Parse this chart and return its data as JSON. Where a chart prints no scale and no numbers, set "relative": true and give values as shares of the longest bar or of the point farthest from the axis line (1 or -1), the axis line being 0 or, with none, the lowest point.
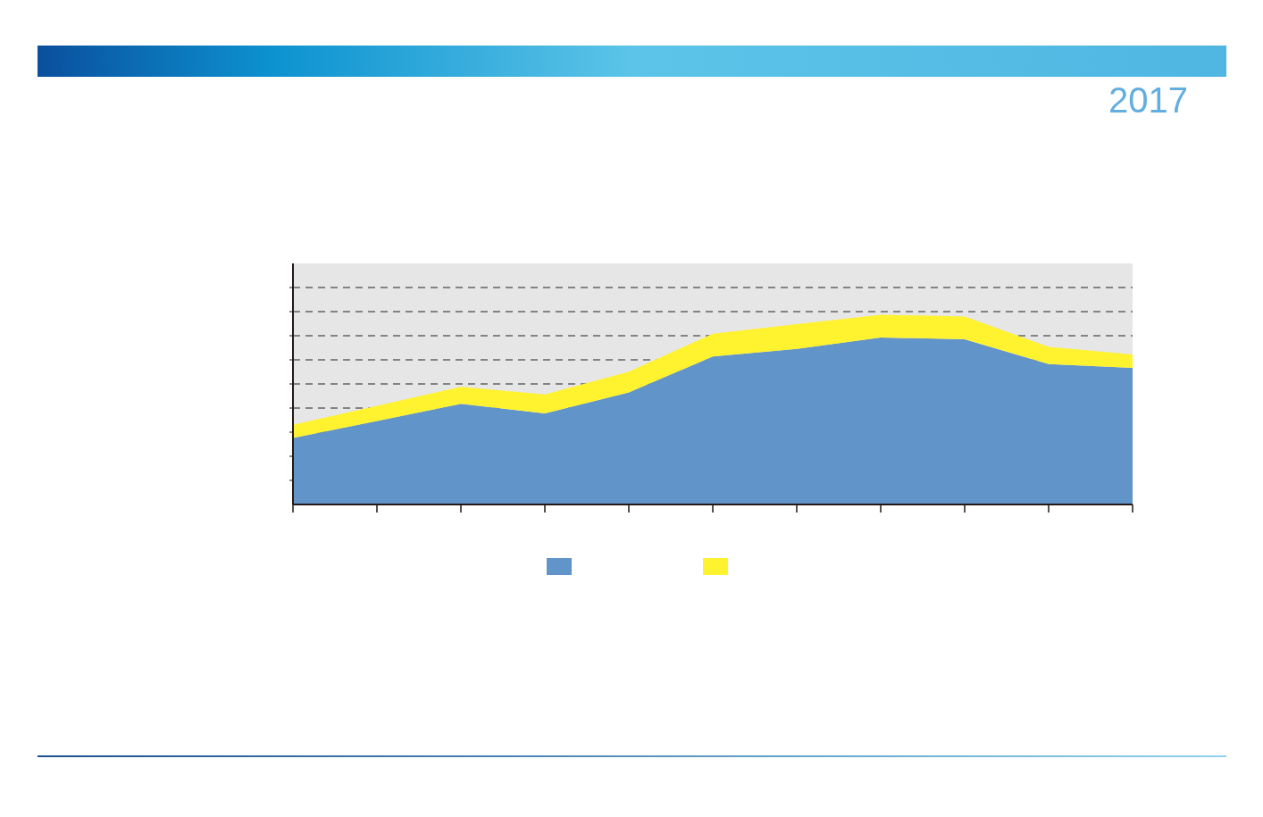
{
  "chart_data": {
    "type": "area",
    "title": "2017",
    "relative": true,
    "stacked": true,
    "grid": "y",
    "categories": [
      null,
      null,
      null,
      null,
      null,
      null,
      null,
      null,
      null,
      null,
      null
    ],
    "series": [
      {
        "color": "#6194c8",
        "values": [
          0.35,
          0.44,
          0.53,
          0.48,
          0.59,
          0.78,
          0.82,
          0.88,
          0.87,
          0.74,
          0.72
        ]
      },
      {
        "color": "#fff22e",
        "values": [
          0.07,
          0.08,
          0.09,
          0.1,
          0.11,
          0.12,
          0.13,
          0.12,
          0.12,
          0.09,
          0.07
        ]
      }
    ]
  }
}
